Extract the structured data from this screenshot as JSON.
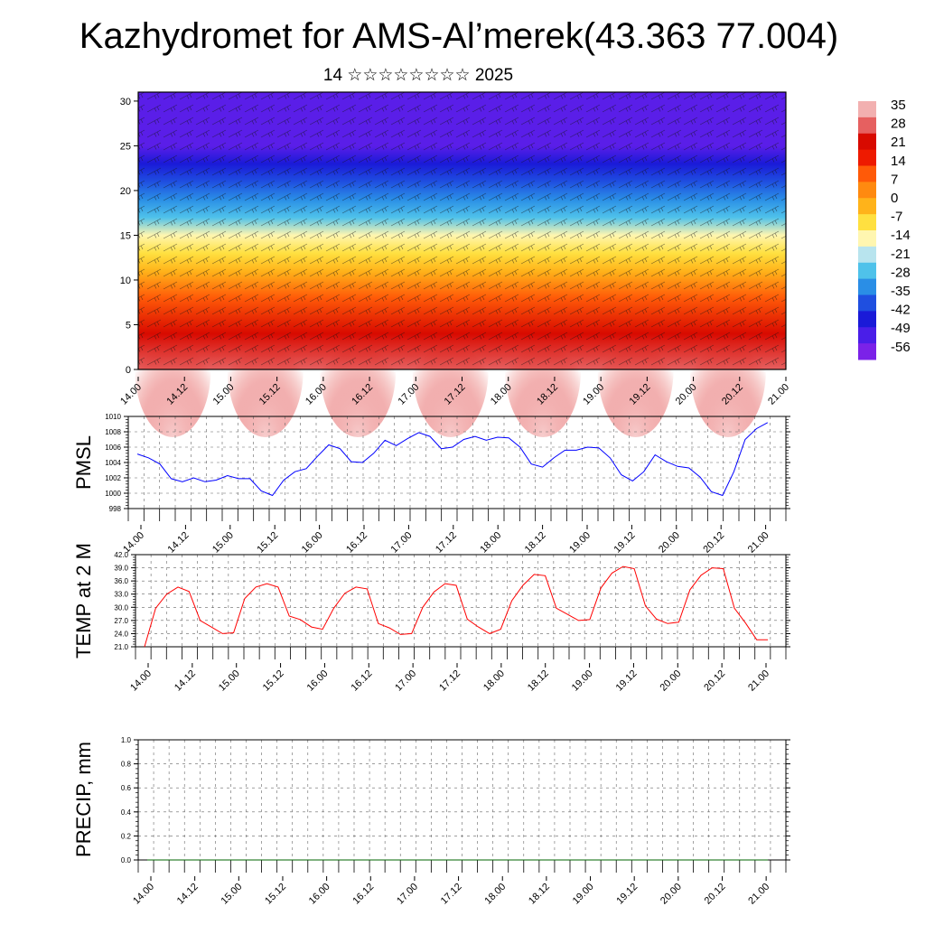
{
  "title": "Kazhydromet for AMS-Al’merek(43.363 77.004)",
  "subtitle": "14 ☆☆☆☆☆☆☆☆ 2025",
  "colorbar": {
    "labels": [
      "35",
      "28",
      "21",
      "14",
      "7",
      "0",
      "-7",
      "-14",
      "-21",
      "-28",
      "-35",
      "-42",
      "-49",
      "-56"
    ],
    "colors": [
      "#7b22e8",
      "#4a1ee8",
      "#1a1ad8",
      "#1f4fe0",
      "#2a8ee6",
      "#4fc2ea",
      "#b8e4ee",
      "#fff6b0",
      "#ffe040",
      "#ffb31a",
      "#ff8a10",
      "#ff5a08",
      "#ee1a00",
      "#d80a00",
      "#e66060",
      "#f2b0b0"
    ]
  },
  "chart_data": [
    {
      "type": "heatmap",
      "name": "temperature cross-section with wind barbs",
      "y_ticks": [
        0,
        5,
        10,
        15,
        20,
        25,
        30
      ],
      "ylim": [
        0,
        31
      ],
      "x_tick_labels": [
        "14.00",
        "14.12",
        "15.00",
        "15.12",
        "16.00",
        "16.12",
        "17.00",
        "17.12",
        "18.00",
        "18.12",
        "19.00",
        "19.12",
        "20.00",
        "20.12",
        "21.00"
      ],
      "level_temps": [
        {
          "level": 0,
          "value": 30
        },
        {
          "level": 4,
          "value": 25
        },
        {
          "level": 8,
          "value": 16
        },
        {
          "level": 11,
          "value": 5
        },
        {
          "level": 13,
          "value": -3
        },
        {
          "level": 15,
          "value": -10
        },
        {
          "level": 17,
          "value": -20
        },
        {
          "level": 19,
          "value": -28
        },
        {
          "level": 21,
          "value": -36
        },
        {
          "level": 23,
          "value": -45
        },
        {
          "level": 25,
          "value": -55
        },
        {
          "level": 27,
          "value": -52
        },
        {
          "level": 29,
          "value": -50
        },
        {
          "level": 31,
          "value": -50
        }
      ],
      "vmin": -56,
      "vmax": 35
    },
    {
      "type": "line",
      "ylabel": "PMSL",
      "ylim": [
        998,
        1010
      ],
      "y_ticks": [
        "998",
        "1000",
        "1002",
        "1004",
        "1006",
        "1008",
        "1010"
      ],
      "x_tick_labels": [
        "14.00",
        "14.12",
        "15.00",
        "15.12",
        "16.00",
        "16.12",
        "17.00",
        "17.12",
        "18.00",
        "18.12",
        "19.00",
        "19.12",
        "20.00",
        "20.12",
        "21.00"
      ],
      "x_hours": [
        0,
        3,
        6,
        9,
        12,
        15,
        18,
        21,
        24,
        27,
        30,
        33,
        36,
        39,
        42,
        45,
        48,
        51,
        54,
        57,
        60,
        63,
        66,
        69,
        72,
        75,
        78,
        81,
        84,
        87,
        90,
        93,
        96,
        99,
        102,
        105,
        108,
        111,
        114,
        117,
        120,
        123,
        126,
        129,
        132,
        135,
        138,
        141,
        144,
        147,
        150,
        153,
        156,
        159,
        162,
        165,
        168
      ],
      "values": [
        1005.1,
        1004.6,
        1003.8,
        1001.9,
        1001.5,
        1002.0,
        1001.5,
        1001.7,
        1002.3,
        1001.9,
        1001.9,
        1000.3,
        999.7,
        1001.7,
        1002.8,
        1003.2,
        1004.8,
        1006.3,
        1005.8,
        1004.1,
        1004.0,
        1005.2,
        1006.9,
        1006.2,
        1007.1,
        1007.9,
        1007.4,
        1005.8,
        1006.0,
        1007.0,
        1007.4,
        1006.9,
        1007.3,
        1007.2,
        1006.0,
        1003.8,
        1003.4,
        1004.6,
        1005.6,
        1005.6,
        1006.0,
        1005.9,
        1004.6,
        1002.4,
        1001.6,
        1002.8,
        1005.0,
        1004.1,
        1003.5,
        1003.3,
        1002.1,
        1000.2,
        999.7,
        1002.8,
        1007.0,
        1008.4,
        1009.2
      ],
      "line_color": "#0000ff"
    },
    {
      "type": "line",
      "ylabel": "TEMP at 2 M",
      "ylim": [
        21.0,
        42.0
      ],
      "y_ticks": [
        "21.0",
        "24.0",
        "27.0",
        "30.0",
        "33.0",
        "36.0",
        "39.0",
        "42.0"
      ],
      "x_tick_labels": [
        "14.00",
        "14.12",
        "15.00",
        "15.12",
        "16.00",
        "16.12",
        "17.00",
        "17.12",
        "18.00",
        "18.12",
        "19.00",
        "19.12",
        "20.00",
        "20.12",
        "21.00"
      ],
      "x_hours": [
        0,
        3,
        6,
        9,
        12,
        15,
        18,
        21,
        24,
        27,
        30,
        33,
        36,
        39,
        42,
        45,
        48,
        51,
        54,
        57,
        60,
        63,
        66,
        69,
        72,
        75,
        78,
        81,
        84,
        87,
        90,
        93,
        96,
        99,
        102,
        105,
        108,
        111,
        114,
        117,
        120,
        123,
        126,
        129,
        132,
        135,
        138,
        141,
        144,
        147,
        150,
        153,
        156,
        159,
        162,
        165,
        168
      ],
      "values": [
        21.0,
        29.8,
        33.0,
        34.6,
        33.6,
        27.0,
        25.5,
        24.0,
        24.2,
        32.0,
        34.6,
        35.4,
        34.6,
        28.0,
        27.2,
        25.5,
        25.0,
        29.8,
        33.2,
        34.6,
        34.2,
        26.3,
        25.3,
        23.8,
        24.0,
        30.0,
        33.5,
        35.4,
        35.0,
        27.3,
        25.5,
        24.0,
        25.0,
        31.5,
        35.0,
        37.5,
        37.2,
        29.8,
        28.4,
        27.0,
        27.2,
        34.4,
        37.8,
        39.3,
        38.8,
        30.3,
        27.3,
        26.3,
        26.6,
        34.0,
        37.3,
        39.0,
        38.8,
        29.8,
        26.4,
        22.6,
        22.6
      ],
      "line_color": "#ff0000"
    },
    {
      "type": "line",
      "ylabel": "PRECIP, mm",
      "ylim": [
        0.0,
        1.0
      ],
      "y_ticks": [
        "0.0",
        "0.2",
        "0.4",
        "0.6",
        "0.8",
        "1.0"
      ],
      "x_tick_labels": [
        "14.00",
        "14.12",
        "15.00",
        "15.12",
        "16.00",
        "16.12",
        "17.00",
        "17.12",
        "18.00",
        "18.12",
        "19.00",
        "19.12",
        "20.00",
        "20.12",
        "21.00"
      ],
      "values": [
        0,
        0,
        0,
        0,
        0,
        0,
        0,
        0,
        0,
        0,
        0,
        0,
        0,
        0,
        0,
        0,
        0,
        0,
        0,
        0,
        0,
        0,
        0,
        0,
        0,
        0,
        0,
        0,
        0,
        0,
        0,
        0,
        0,
        0,
        0,
        0,
        0,
        0,
        0,
        0,
        0,
        0,
        0,
        0,
        0,
        0,
        0,
        0,
        0,
        0,
        0,
        0,
        0,
        0,
        0,
        0,
        0
      ],
      "line_color": "#006400"
    }
  ]
}
